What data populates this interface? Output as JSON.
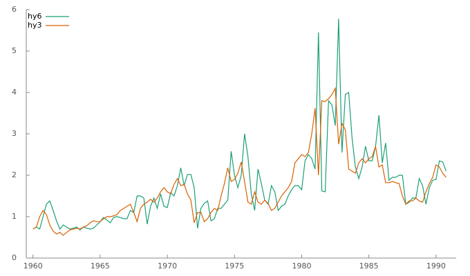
{
  "chart_data": {
    "type": "line",
    "x": [
      1960,
      1960.25,
      1960.5,
      1960.75,
      1961,
      1961.25,
      1961.5,
      1961.75,
      1962,
      1962.25,
      1962.5,
      1962.75,
      1963,
      1963.25,
      1963.5,
      1963.75,
      1964,
      1964.25,
      1964.5,
      1964.75,
      1965,
      1965.25,
      1965.5,
      1965.75,
      1966,
      1966.25,
      1966.5,
      1966.75,
      1967,
      1967.25,
      1967.5,
      1967.75,
      1968,
      1968.25,
      1968.5,
      1968.75,
      1969,
      1969.25,
      1969.5,
      1969.75,
      1970,
      1970.25,
      1970.5,
      1970.75,
      1971,
      1971.25,
      1971.5,
      1971.75,
      1972,
      1972.25,
      1972.5,
      1972.75,
      1973,
      1973.25,
      1973.5,
      1973.75,
      1974,
      1974.25,
      1974.5,
      1974.75,
      1975,
      1975.25,
      1975.5,
      1975.75,
      1976,
      1976.25,
      1976.5,
      1976.75,
      1977,
      1977.25,
      1977.5,
      1977.75,
      1978,
      1978.25,
      1978.5,
      1978.75,
      1979,
      1979.25,
      1979.5,
      1979.75,
      1980,
      1980.25,
      1980.5,
      1980.75,
      1981,
      1981.25,
      1981.5,
      1981.75,
      1982,
      1982.25,
      1982.5,
      1982.75,
      1983,
      1983.25,
      1983.5,
      1983.75,
      1984,
      1984.25,
      1984.5,
      1984.75,
      1985,
      1985.25,
      1985.5,
      1985.75,
      1986,
      1986.25,
      1986.5,
      1986.75,
      1987,
      1987.25,
      1987.5,
      1987.75,
      1988,
      1988.25,
      1988.5,
      1988.75,
      1989,
      1989.25,
      1989.5,
      1989.75,
      1990,
      1990.25,
      1990.5,
      1990.75
    ],
    "series": [
      {
        "name": "hy6",
        "color": "#1b9e77",
        "values": [
          0.7,
          0.75,
          0.7,
          1.0,
          1.3,
          1.38,
          1.15,
          0.9,
          0.7,
          0.8,
          0.75,
          0.7,
          0.72,
          0.75,
          0.68,
          0.75,
          0.72,
          0.7,
          0.72,
          0.8,
          0.88,
          0.98,
          0.92,
          0.85,
          0.98,
          1.0,
          0.98,
          0.95,
          0.95,
          1.15,
          1.1,
          1.5,
          1.5,
          1.45,
          0.82,
          1.25,
          1.45,
          1.2,
          1.55,
          1.25,
          1.22,
          1.58,
          1.5,
          1.75,
          2.18,
          1.75,
          2.02,
          2.02,
          1.7,
          0.72,
          1.2,
          1.32,
          1.38,
          0.9,
          0.95,
          1.2,
          1.2,
          1.3,
          1.4,
          2.58,
          2.0,
          1.7,
          2.0,
          3.0,
          2.45,
          1.55,
          1.15,
          2.15,
          1.8,
          1.4,
          1.3,
          1.75,
          1.6,
          1.15,
          1.25,
          1.3,
          1.5,
          1.65,
          1.75,
          1.75,
          1.65,
          2.35,
          2.5,
          2.4,
          2.15,
          5.45,
          1.62,
          1.6,
          3.8,
          3.7,
          3.2,
          5.78,
          2.55,
          3.95,
          4.0,
          2.9,
          2.2,
          1.92,
          2.2,
          2.7,
          2.35,
          2.35,
          2.7,
          3.45,
          2.3,
          2.78,
          1.88,
          1.95,
          1.95,
          2.0,
          2.0,
          1.3,
          1.35,
          1.45,
          1.45,
          1.92,
          1.75,
          1.3,
          1.7,
          1.88,
          1.9,
          2.35,
          2.32,
          2.1
        ]
      },
      {
        "name": "hy3",
        "color": "#d95f02",
        "values": [
          0.7,
          0.75,
          1.0,
          1.15,
          1.05,
          0.8,
          0.65,
          0.58,
          0.62,
          0.55,
          0.62,
          0.68,
          0.7,
          0.72,
          0.7,
          0.75,
          0.78,
          0.85,
          0.9,
          0.88,
          0.88,
          0.95,
          1.0,
          1.0,
          1.02,
          1.05,
          1.15,
          1.2,
          1.25,
          1.3,
          1.1,
          0.88,
          1.2,
          1.3,
          1.35,
          1.42,
          1.35,
          1.45,
          1.6,
          1.7,
          1.6,
          1.55,
          1.78,
          1.92,
          1.75,
          1.78,
          1.55,
          1.4,
          0.85,
          1.1,
          1.1,
          0.88,
          0.95,
          1.1,
          1.2,
          1.15,
          1.5,
          1.8,
          2.18,
          1.85,
          1.9,
          2.05,
          2.32,
          1.85,
          1.35,
          1.3,
          1.6,
          1.35,
          1.3,
          1.4,
          1.32,
          1.15,
          1.2,
          1.35,
          1.5,
          1.6,
          1.7,
          1.85,
          2.3,
          2.4,
          2.5,
          2.45,
          2.55,
          3.0,
          3.62,
          2.0,
          3.8,
          3.78,
          3.85,
          3.95,
          4.1,
          2.75,
          3.25,
          3.1,
          2.15,
          2.1,
          2.05,
          2.3,
          2.4,
          2.3,
          2.4,
          2.45,
          2.7,
          2.2,
          2.25,
          1.82,
          1.82,
          1.85,
          1.82,
          1.8,
          1.5,
          1.3,
          1.38,
          1.38,
          1.45,
          1.38,
          1.35,
          1.6,
          1.8,
          1.95,
          2.25,
          2.2,
          2.05,
          1.95
        ]
      }
    ],
    "xlim": [
      1959.5,
      1991.5
    ],
    "xticks": [
      1960,
      1965,
      1970,
      1975,
      1980,
      1985,
      1990
    ],
    "ylim": [
      0,
      6
    ],
    "yticks": [
      0,
      1,
      2,
      3,
      4,
      5,
      6
    ],
    "legend": "top-left"
  }
}
